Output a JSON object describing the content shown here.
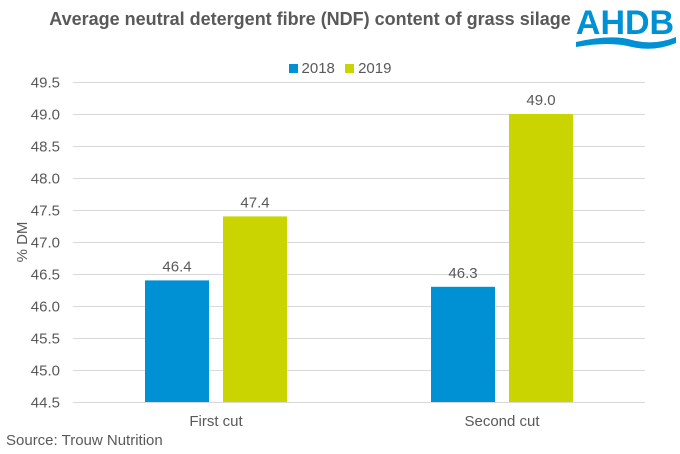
{
  "logo": {
    "text": "AHDB",
    "color": "#0090d4"
  },
  "chart_data": {
    "type": "bar",
    "title": "Average neutral detergent fibre (NDF) content of grass silage",
    "xlabel": "",
    "ylabel": "% DM",
    "ylim": [
      44.5,
      49.5
    ],
    "yticks": [
      "44.5",
      "45.0",
      "45.5",
      "46.0",
      "46.5",
      "47.0",
      "47.5",
      "48.0",
      "48.5",
      "49.0",
      "49.5"
    ],
    "ytick_step": 0.5,
    "grid": true,
    "legend_position": "top",
    "categories": [
      "First cut",
      "Second cut"
    ],
    "series": [
      {
        "name": "2018",
        "color": "#0090d4",
        "values": [
          46.4,
          46.3
        ],
        "labels": [
          "46.4",
          "46.3"
        ]
      },
      {
        "name": "2019",
        "color": "#c9d400",
        "values": [
          47.4,
          49.0
        ],
        "labels": [
          "47.4",
          "49.0"
        ]
      }
    ]
  },
  "source": "Source: Trouw  Nutrition"
}
